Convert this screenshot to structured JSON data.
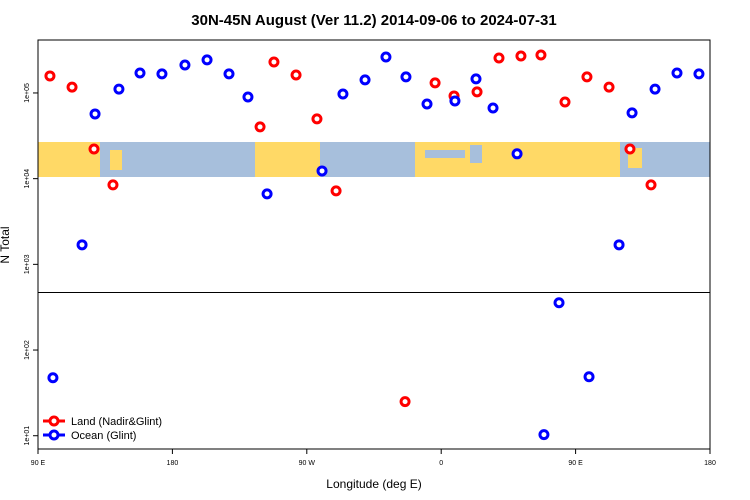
{
  "chart_data": {
    "type": "scatter",
    "title": "30N-45N August (Ver 11.2)   2014-09-06 to 2024-07-31",
    "xlabel": "Longitude (deg E)",
    "ylabel": "N Total",
    "xlim": [
      90,
      540
    ],
    "xticks": [
      {
        "value": 90,
        "label": "90 E"
      },
      {
        "value": 180,
        "label": "180"
      },
      {
        "value": 270,
        "label": "90 W"
      },
      {
        "value": 360,
        "label": "0"
      },
      {
        "value": 450,
        "label": "90 E"
      },
      {
        "value": 540,
        "label": "180"
      }
    ],
    "ylim": [
      7,
      415000
    ],
    "log_y": true,
    "yticks": [
      {
        "value": 10,
        "label": "1e+01"
      },
      {
        "value": 100,
        "label": "1e+02"
      },
      {
        "value": 1000,
        "label": "1e+03"
      },
      {
        "value": 10000,
        "label": "1e+04"
      },
      {
        "value": 100000,
        "label": "1e+05"
      }
    ],
    "hline": 470,
    "legend": "bottom-left",
    "series": [
      {
        "name": "Land (Nadir&Glint)",
        "color": "#ff0000",
        "x": [
          98.0,
          112.8,
          127.5,
          140.2,
          238.7,
          248.0,
          262.8,
          276.8,
          289.6,
          335.8,
          355.9,
          368.6,
          384.0,
          398.7,
          413.4,
          426.8,
          442.9,
          457.6,
          472.4,
          486.4,
          500.5
        ],
        "values": [
          158000,
          117000,
          22200,
          8450,
          40200,
          230000,
          162000,
          49800,
          7200,
          25,
          131000,
          92300,
          103000,
          256000,
          270000,
          277000,
          78500,
          154000,
          117000,
          22200,
          8450
        ]
      },
      {
        "name": "Ocean (Glint)",
        "color": "#0000ff",
        "x": [
          100.0,
          119.5,
          128.2,
          144.2,
          158.3,
          173.0,
          188.4,
          203.2,
          217.9,
          230.6,
          243.4,
          280.2,
          294.2,
          309.0,
          323.0,
          336.4,
          350.5,
          369.2,
          383.3,
          394.7,
          410.8,
          428.8,
          438.9,
          459.0,
          479.1,
          487.8,
          503.2,
          517.9,
          532.6
        ],
        "values": [
          47.5,
          1690,
          56900,
          111000,
          171000,
          167000,
          212000,
          243000,
          167000,
          89800,
          6640,
          12300,
          97300,
          142000,
          263000,
          154000,
          74400,
          80700,
          146000,
          66800,
          19500,
          10.3,
          356,
          48.7,
          1690,
          58500,
          111000,
          171000,
          167000
        ]
      }
    ]
  }
}
